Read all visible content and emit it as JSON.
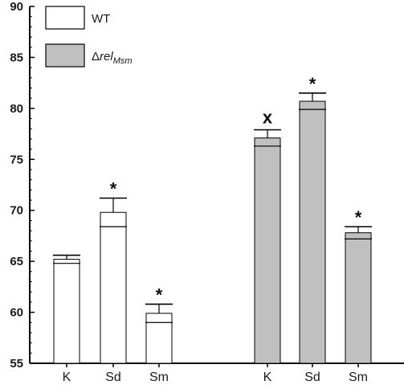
{
  "chart_data": {
    "type": "bar",
    "ylim": [
      55,
      90
    ],
    "yticks": [
      55,
      60,
      65,
      70,
      75,
      80,
      85,
      90
    ],
    "grid": false,
    "legend_position": "top-left",
    "legend": [
      {
        "label": "WT",
        "label_sub": "",
        "color": "#ffffff"
      },
      {
        "label": "Δrel",
        "label_sub": "Msm",
        "color": "#c0c0c0"
      }
    ],
    "groups": [
      {
        "name": "WT",
        "color": "#ffffff",
        "bars": [
          {
            "category": "K",
            "value": 65.2,
            "error": 0.4,
            "mark": ""
          },
          {
            "category": "Sd",
            "value": 69.8,
            "error": 1.4,
            "mark": "*"
          },
          {
            "category": "Sm",
            "value": 59.9,
            "error": 0.9,
            "mark": "*"
          }
        ]
      },
      {
        "name": "Δrel Msm",
        "color": "#c0c0c0",
        "bars": [
          {
            "category": "K",
            "value": 77.1,
            "error": 0.8,
            "mark": "x"
          },
          {
            "category": "Sd",
            "value": 80.7,
            "error": 0.8,
            "mark": "*"
          },
          {
            "category": "Sm",
            "value": 67.8,
            "error": 0.6,
            "mark": "*"
          }
        ]
      }
    ]
  }
}
